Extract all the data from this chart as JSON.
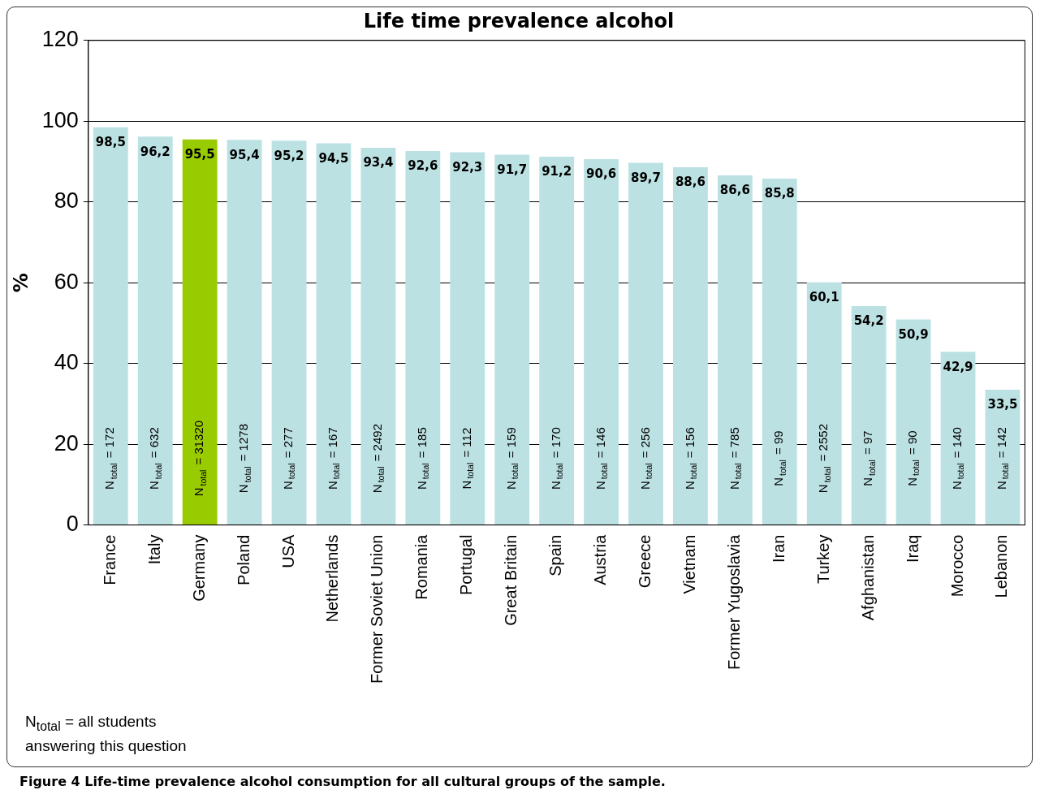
{
  "chart_data": {
    "type": "bar",
    "title": "Life time prevalence alcohol",
    "ylabel": "%",
    "categories": [
      "France",
      "Italy",
      "Germany",
      "Poland",
      "USA",
      "Netherlands",
      "Former Soviet Union",
      "Romania",
      "Portugal",
      "Great Britain",
      "Spain",
      "Austria",
      "Greece",
      "Vietnam",
      "Former Yugoslavia",
      "Iran",
      "Turkey",
      "Afghanistan",
      "Iraq",
      "Morocco",
      "Lebanon"
    ],
    "values": [
      98.5,
      96.2,
      95.5,
      95.4,
      95.2,
      94.5,
      93.4,
      92.6,
      92.3,
      91.7,
      91.2,
      90.6,
      89.7,
      88.6,
      86.6,
      85.8,
      60.1,
      54.2,
      50.9,
      42.9,
      33.5
    ],
    "value_labels": [
      "98,5",
      "96,2",
      "95,5",
      "95,4",
      "95,2",
      "94,5",
      "93,4",
      "92,6",
      "92,3",
      "91,7",
      "91,2",
      "90,6",
      "89,7",
      "88,6",
      "86,6",
      "85,8",
      "60,1",
      "54,2",
      "50,9",
      "42,9",
      "33,5"
    ],
    "colors": [
      "#bce1e3",
      "#bce1e3",
      "#99cc00",
      "#bce1e3",
      "#bce1e3",
      "#bce1e3",
      "#bce1e3",
      "#bce1e3",
      "#bce1e3",
      "#bce1e3",
      "#bce1e3",
      "#bce1e3",
      "#bce1e3",
      "#bce1e3",
      "#bce1e3",
      "#bce1e3",
      "#bce1e3",
      "#bce1e3",
      "#bce1e3",
      "#bce1e3",
      "#bce1e3"
    ],
    "ylim": [
      0,
      120
    ],
    "yticks": [
      0,
      20,
      40,
      60,
      80,
      100,
      120
    ],
    "grid": "y",
    "legend": false,
    "annotations": [
      "N$_{total}$ = 172",
      "N$_{total}$ = 632",
      "N$_{total}$ = 31320",
      "N$_{total}$ = 1278",
      "N$_{total}$ = 277",
      "N$_{total}$ = 167",
      "N$_{total}$ = 2492",
      "N$_{total}$ = 185",
      "N$_{total}$ = 112",
      "N$_{total}$ = 159",
      "N$_{total}$ = 170",
      "N$_{total}$ = 146",
      "N$_{total}$ = 256",
      "N$_{total}$ = 156",
      "N$_{total}$ = 785",
      "N$_{total}$ = 99",
      "N$_{total}$ = 2552",
      "N$_{total}$ = 97",
      "N$_{total}$ = 90",
      "N$_{total}$ = 140",
      "N$_{total}$ = 142",
      "N$_{total}$ = all students answering this question",
      "Figure 4 Life-time prevalence alcohol consumption for all cultural groups of the sample."
    ]
  }
}
